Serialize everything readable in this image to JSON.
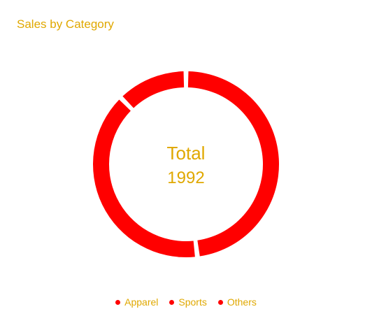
{
  "title": "Sales by Category",
  "colors": {
    "accent": "#ff0000",
    "text": "#e0a800"
  },
  "center": {
    "label": "Total",
    "value": "1992"
  },
  "legend": [
    {
      "label": "Apparel"
    },
    {
      "label": "Sports"
    },
    {
      "label": "Others"
    }
  ],
  "chart_data": {
    "type": "pie",
    "title": "Sales by Category",
    "categories": [
      "Apparel",
      "Sports",
      "Others"
    ],
    "values": [
      957,
      789,
      246
    ],
    "total": 1992,
    "legend_position": "bottom"
  }
}
